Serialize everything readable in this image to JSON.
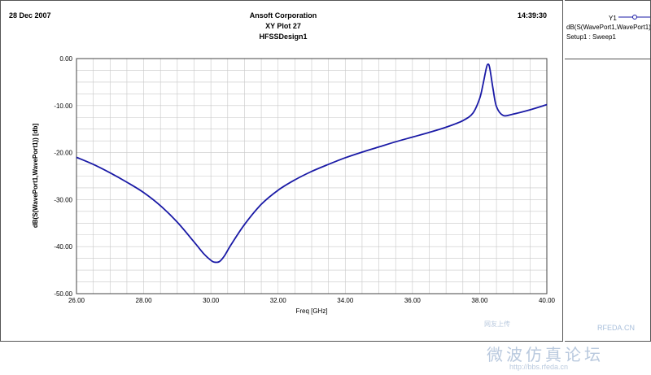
{
  "header": {
    "date": "28 Dec 2007",
    "company": "Ansoft Corporation",
    "plot_name": "XY Plot 27",
    "design": "HFSSDesign1",
    "time": "14:39:30"
  },
  "legend": {
    "series_id": "Y1",
    "trace_label": "dB(S(WavePort1,WavePort1))",
    "setup_label": "Setup1 : Sweep1"
  },
  "watermark": {
    "small": "网友上传",
    "brand": "RFEDA.CN",
    "big": "微波仿真论坛",
    "url": "http://bbs.rfeda.cn"
  },
  "colors": {
    "trace": "#1a1aa6",
    "grid": "#c8c8c8",
    "axis": "#444444"
  },
  "chart_data": {
    "type": "line",
    "xlabel": "Freq [GHz]",
    "ylabel": "dB(S(WavePort1,WavePort1)) [db]",
    "xlim": [
      26.0,
      40.0
    ],
    "ylim": [
      -50.0,
      0.0
    ],
    "x_ticks": [
      "26.00",
      "28.00",
      "30.00",
      "32.00",
      "34.00",
      "36.00",
      "38.00",
      "40.00"
    ],
    "y_ticks": [
      "0.00",
      "-10.00",
      "-20.00",
      "-30.00",
      "-40.00",
      "-50.00"
    ],
    "grid": true,
    "series": [
      {
        "name": "dB(S(WavePort1,WavePort1))",
        "x": [
          26.0,
          26.5,
          27.0,
          27.5,
          28.0,
          28.5,
          29.0,
          29.5,
          29.8,
          30.0,
          30.1,
          30.25,
          30.4,
          30.6,
          31.0,
          31.5,
          32.0,
          32.5,
          33.0,
          33.5,
          34.0,
          34.5,
          35.0,
          35.5,
          36.0,
          36.5,
          37.0,
          37.5,
          37.8,
          38.0,
          38.1,
          38.2,
          38.25,
          38.3,
          38.4,
          38.5,
          38.7,
          39.0,
          39.5,
          40.0
        ],
        "y": [
          -21.0,
          -22.5,
          -24.3,
          -26.3,
          -28.5,
          -31.3,
          -34.8,
          -39.0,
          -41.6,
          -42.9,
          -43.3,
          -43.2,
          -42.0,
          -39.6,
          -35.3,
          -31.0,
          -28.0,
          -25.8,
          -24.0,
          -22.5,
          -21.1,
          -19.9,
          -18.8,
          -17.7,
          -16.7,
          -15.7,
          -14.6,
          -13.2,
          -11.6,
          -8.5,
          -5.5,
          -2.0,
          -1.2,
          -2.0,
          -6.5,
          -10.2,
          -12.1,
          -11.8,
          -10.9,
          -9.8
        ]
      }
    ]
  }
}
